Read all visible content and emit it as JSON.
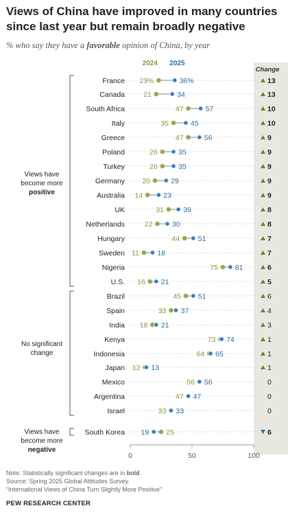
{
  "title": "Views of China have improved in many countries since last year but remain broadly negative",
  "subtitle_pre": "% who say they have a ",
  "subtitle_em": "favorable",
  "subtitle_post": " opinion of China, by year",
  "legend": {
    "y2024": "2024",
    "y2025": "2025",
    "change": "Change"
  },
  "groups": {
    "positive": [
      "Views have",
      "become more",
      "positive"
    ],
    "none": [
      "No significant",
      "change"
    ],
    "negative": [
      "Views have",
      "become more",
      "negative"
    ]
  },
  "notes": {
    "note_pre": "Note: Statistically significant changes are in ",
    "note_bold": "bold",
    "note_post": ".",
    "source": "Source: Spring 2025 Global Attitudes Survey.",
    "report": "“International Views of China Turn Slightly More Positive”"
  },
  "org": "PEW RESEARCH CENTER",
  "colors": {
    "y2024": "#97a94e",
    "y2025": "#3a7fba",
    "text2024": "#8a9a3e",
    "text2025": "#2f6e9f",
    "change_bg": "#e8e8e0",
    "up": "#6f7f2e",
    "down": "#2f6e9f"
  },
  "chart_data": {
    "type": "dot",
    "x_ticks": [
      0,
      50,
      100
    ],
    "xlim": [
      0,
      100
    ],
    "rows": [
      {
        "country": "France",
        "v2024": 23,
        "v2025": 36,
        "change": 13,
        "dir": "up",
        "sig": true,
        "group": "positive"
      },
      {
        "country": "Canada",
        "v2024": 21,
        "v2025": 34,
        "change": 13,
        "dir": "up",
        "sig": true,
        "group": "positive"
      },
      {
        "country": "South Africa",
        "v2024": 47,
        "v2025": 57,
        "change": 10,
        "dir": "up",
        "sig": true,
        "group": "positive"
      },
      {
        "country": "Italy",
        "v2024": 35,
        "v2025": 45,
        "change": 10,
        "dir": "up",
        "sig": true,
        "group": "positive"
      },
      {
        "country": "Greece",
        "v2024": 47,
        "v2025": 56,
        "change": 9,
        "dir": "up",
        "sig": true,
        "group": "positive"
      },
      {
        "country": "Poland",
        "v2024": 26,
        "v2025": 35,
        "change": 9,
        "dir": "up",
        "sig": true,
        "group": "positive"
      },
      {
        "country": "Turkey",
        "v2024": 26,
        "v2025": 35,
        "change": 9,
        "dir": "up",
        "sig": true,
        "group": "positive"
      },
      {
        "country": "Germany",
        "v2024": 20,
        "v2025": 29,
        "change": 9,
        "dir": "up",
        "sig": true,
        "group": "positive"
      },
      {
        "country": "Australia",
        "v2024": 14,
        "v2025": 23,
        "change": 9,
        "dir": "up",
        "sig": true,
        "group": "positive"
      },
      {
        "country": "UK",
        "v2024": 31,
        "v2025": 39,
        "change": 8,
        "dir": "up",
        "sig": true,
        "group": "positive"
      },
      {
        "country": "Netherlands",
        "v2024": 22,
        "v2025": 30,
        "change": 8,
        "dir": "up",
        "sig": true,
        "group": "positive"
      },
      {
        "country": "Hungary",
        "v2024": 44,
        "v2025": 51,
        "change": 7,
        "dir": "up",
        "sig": true,
        "group": "positive"
      },
      {
        "country": "Sweden",
        "v2024": 11,
        "v2025": 18,
        "change": 7,
        "dir": "up",
        "sig": true,
        "group": "positive"
      },
      {
        "country": "Nigeria",
        "v2024": 75,
        "v2025": 81,
        "change": 6,
        "dir": "up",
        "sig": true,
        "group": "positive"
      },
      {
        "country": "U.S.",
        "v2024": 16,
        "v2025": 21,
        "change": 5,
        "dir": "up",
        "sig": true,
        "group": "positive"
      },
      {
        "country": "Brazil",
        "v2024": 45,
        "v2025": 51,
        "change": 6,
        "dir": "up",
        "sig": false,
        "group": "none"
      },
      {
        "country": "Spain",
        "v2024": 33,
        "v2025": 37,
        "change": 4,
        "dir": "up",
        "sig": false,
        "group": "none"
      },
      {
        "country": "India",
        "v2024": 18,
        "v2025": 21,
        "change": 3,
        "dir": "up",
        "sig": false,
        "group": "none"
      },
      {
        "country": "Kenya",
        "v2024": 73,
        "v2025": 74,
        "change": 1,
        "dir": "up",
        "sig": false,
        "group": "none"
      },
      {
        "country": "Indonesia",
        "v2024": 64,
        "v2025": 65,
        "change": 1,
        "dir": "up",
        "sig": false,
        "group": "none"
      },
      {
        "country": "Japan",
        "v2024": 12,
        "v2025": 13,
        "change": 1,
        "dir": "up",
        "sig": false,
        "group": "none"
      },
      {
        "country": "Mexico",
        "v2024": 56,
        "v2025": 56,
        "change": 0,
        "dir": "none",
        "sig": false,
        "group": "none"
      },
      {
        "country": "Argentina",
        "v2024": 47,
        "v2025": 47,
        "change": 0,
        "dir": "none",
        "sig": false,
        "group": "none"
      },
      {
        "country": "Israel",
        "v2024": 33,
        "v2025": 33,
        "change": 0,
        "dir": "none",
        "sig": false,
        "group": "none"
      },
      {
        "country": "South Korea",
        "v2024": 25,
        "v2025": 19,
        "change": 6,
        "dir": "down",
        "sig": true,
        "group": "negative"
      }
    ]
  }
}
